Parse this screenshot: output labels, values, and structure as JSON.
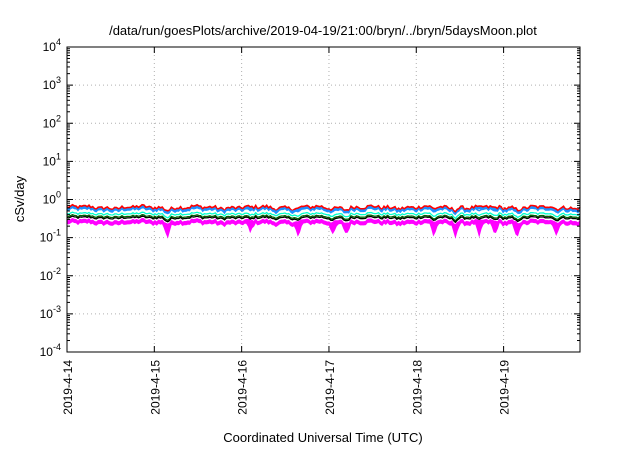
{
  "chart_data": {
    "type": "area",
    "title": "/data/run/goesPlots/archive/2019-04-19/21:00/bryn/../bryn/5daysMoon.plot",
    "xlabel": "Coordinated Universal Time (UTC)",
    "ylabel": "cSv/day",
    "y_scale": "log",
    "ylim": [
      0.0001,
      10000
    ],
    "y_ticks": [
      {
        "value": 0.0001,
        "base": "10",
        "exp": "-4"
      },
      {
        "value": 0.001,
        "base": "10",
        "exp": "-3"
      },
      {
        "value": 0.01,
        "base": "10",
        "exp": "-2"
      },
      {
        "value": 0.1,
        "base": "10",
        "exp": "-1"
      },
      {
        "value": 1,
        "base": "10",
        "exp": "0"
      },
      {
        "value": 10,
        "base": "10",
        "exp": "1"
      },
      {
        "value": 100,
        "base": "10",
        "exp": "2"
      },
      {
        "value": 1000,
        "base": "10",
        "exp": "3"
      },
      {
        "value": 10000,
        "base": "10",
        "exp": "4"
      }
    ],
    "xlim": [
      "2019-04-14 00:00",
      "2019-04-19 21:00"
    ],
    "x_ticks": [
      "2019-4-14",
      "2019-4-15",
      "2019-4-16",
      "2019-4-17",
      "2019-4-18",
      "2019-4-19"
    ],
    "grid": true,
    "legend": "none",
    "series": [
      {
        "color": "#ff0000",
        "level": 0.62,
        "kind": "upper-band-edge"
      },
      {
        "color": "#1e90ff",
        "level": 0.55,
        "kind": "line"
      },
      {
        "color": "#00ffcc",
        "level": 0.42,
        "kind": "line"
      },
      {
        "color": "#006400",
        "level": 0.36,
        "kind": "line"
      },
      {
        "color": "#000000",
        "level": 0.33,
        "kind": "line"
      },
      {
        "color": "#ff00ff",
        "level": 0.26,
        "kind": "lower-band"
      }
    ],
    "dips": [
      {
        "day": 1.15,
        "depth": 0.55
      },
      {
        "day": 2.1,
        "depth": 0.45
      },
      {
        "day": 2.65,
        "depth": 0.6
      },
      {
        "day": 3.05,
        "depth": 0.5
      },
      {
        "day": 3.2,
        "depth": 0.45
      },
      {
        "day": 4.2,
        "depth": 0.55
      },
      {
        "day": 4.45,
        "depth": 0.5
      },
      {
        "day": 4.72,
        "depth": 0.6
      },
      {
        "day": 4.9,
        "depth": 0.55
      },
      {
        "day": 5.15,
        "depth": 0.6
      },
      {
        "day": 5.6,
        "depth": 0.5
      }
    ]
  }
}
